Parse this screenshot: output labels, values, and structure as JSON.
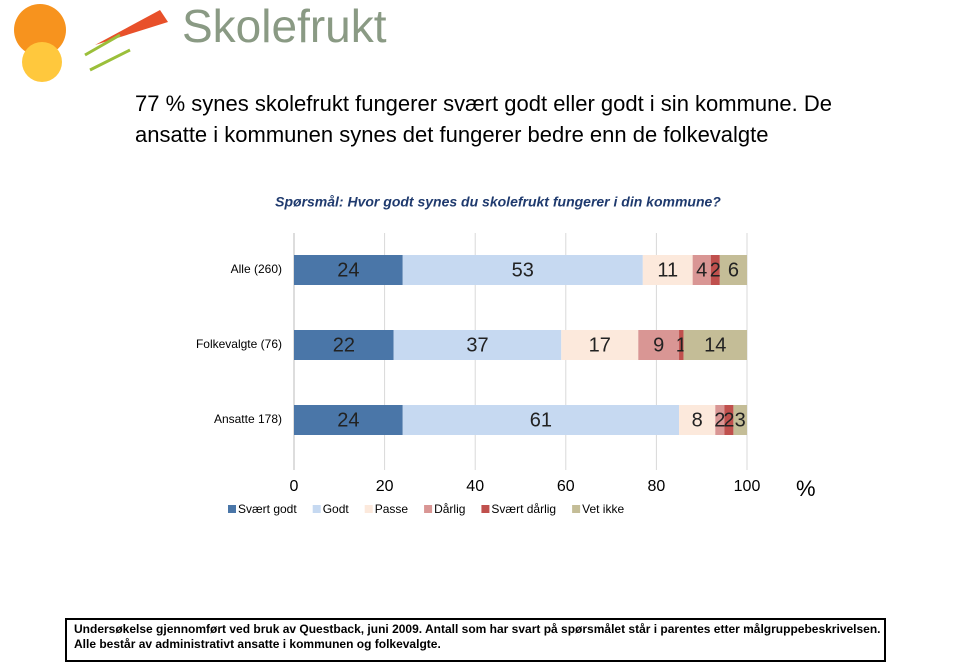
{
  "logo": "Skolefrukt",
  "heading": "77 % synes skolefrukt fungerer svært godt eller godt i sin kommune. De ansatte i kommunen synes det fungerer bedre enn de folkevalgte",
  "footer": [
    "Undersøkelse gjennomført ved bruk av Questback, juni 2009. Antall som har svart på spørsmålet står i parentes etter målgruppebeskrivelsen.",
    "Alle består av administrativt ansatte i kommunen og folkevalgte."
  ],
  "chart_data": {
    "type": "stacked-bar-horizontal",
    "title": "Spørsmål: Hvor godt synes du skolefrukt fungerer i din kommune?",
    "x_label": "%",
    "categories": [
      "Alle (260)",
      "Folkevalgte (76)",
      "Ansatte 178)"
    ],
    "series": [
      {
        "name": "Svært godt",
        "color": "#4a76a8",
        "values": [
          24,
          22,
          24
        ]
      },
      {
        "name": "Godt",
        "color": "#c6d9f1",
        "values": [
          53,
          37,
          61
        ]
      },
      {
        "name": "Passe",
        "color": "#fce9dc",
        "values": [
          11,
          17,
          8
        ]
      },
      {
        "name": "Dårlig",
        "color": "#d99694",
        "values": [
          4,
          9,
          2
        ]
      },
      {
        "name": "Svært dårlig",
        "color": "#c0504d",
        "values": [
          2,
          1,
          2
        ]
      },
      {
        "name": "Vet ikke",
        "color": "#c4bd97",
        "values": [
          6,
          14,
          3
        ]
      }
    ],
    "xlim": [
      0,
      100
    ],
    "xticks": [
      0,
      20,
      40,
      60,
      80,
      100
    ],
    "grid": true
  }
}
